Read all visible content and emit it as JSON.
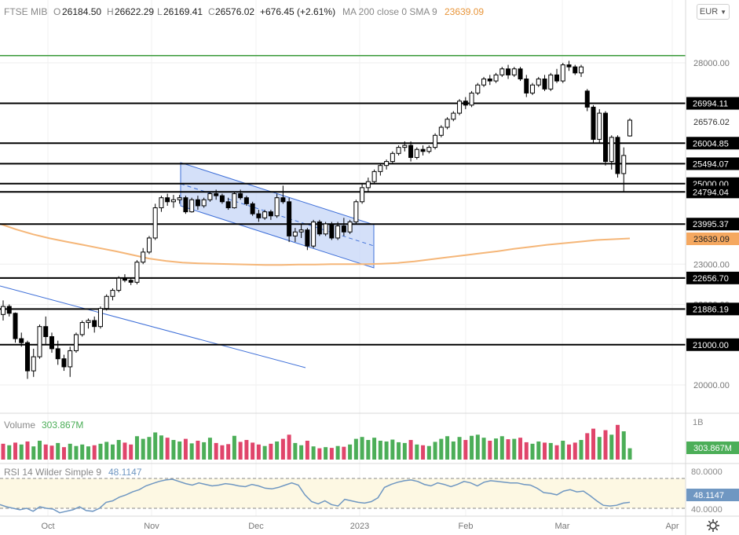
{
  "header": {
    "symbol": "FTSE MIB",
    "open_label": "O",
    "open_value": "26184.50",
    "high_label": "H",
    "high_value": "26622.29",
    "low_label": "L",
    "low_value": "26169.41",
    "close_label": "C",
    "close_value": "26576.02",
    "change": "+676.45 (+2.61%)",
    "ma_label": "MA 200 close 0 SMA 9",
    "ma_value": "23639.09"
  },
  "currency": {
    "label": "EUR",
    "icon": "chevron-down-icon"
  },
  "settings_icon": "gear-icon",
  "colors": {
    "up": "#000000",
    "down": "#000000",
    "ma": "#f5b678",
    "vol_up": "#4cae58",
    "vol_down": "#e0456b",
    "support_line": "#000000",
    "top_line": "#3a9a3a",
    "channel_fill": "#c9d8f7",
    "channel_stroke": "#3e6fd8",
    "rsi_line": "#6f97c2",
    "rsi_band": "#fdf8e3",
    "label_dark_bg": "#000000",
    "ma_label_bg": "#f5a860"
  },
  "chart_data": {
    "type": "candlestick",
    "title": "FTSE MIB",
    "price_axis_ticks": [
      20000,
      21000,
      22000,
      23000,
      24000,
      25000,
      26000,
      27000,
      28000
    ],
    "price_axis_tick_labels": [
      "20000.00",
      "21000.00",
      "22000.00",
      "23000.00",
      "24000.00",
      "25000.00",
      "26000.00",
      "27000.00",
      "28000.00"
    ],
    "ylim": [
      19450,
      28700
    ],
    "x_labels": [
      "Oct",
      "Nov",
      "Dec",
      "2023",
      "Feb",
      "Mar",
      "Apr"
    ],
    "horizontal_levels": [
      {
        "value": 26994.11,
        "label": "26994.11"
      },
      {
        "value": 26004.85,
        "label": "26004.85"
      },
      {
        "value": 25494.07,
        "label": "25494.07"
      },
      {
        "value": 25000.0,
        "label": "25000.00"
      },
      {
        "value": 24794.04,
        "label": "24794.04"
      },
      {
        "value": 23995.37,
        "label": "23995.37"
      },
      {
        "value": 22656.7,
        "label": "22656.70"
      },
      {
        "value": 21886.19,
        "label": "21886.19"
      },
      {
        "value": 21000.0,
        "label": "21000.00"
      }
    ],
    "top_level": {
      "value": 28180
    },
    "current_price_label": "26576.02",
    "ma_price_label": "23639.09",
    "ma200": [
      24000,
      23860,
      23740,
      23640,
      23560,
      23480,
      23400,
      23320,
      23230,
      23140,
      23080,
      23040,
      23020,
      23010,
      23000,
      22990,
      22980,
      22980,
      22990,
      22990,
      23000,
      23000,
      23000,
      23010,
      23030,
      23070,
      23120,
      23170,
      23220,
      23270,
      23320,
      23380,
      23430,
      23480,
      23520,
      23560,
      23600,
      23620,
      23639.09
    ],
    "volume_label": "Volume",
    "volume_value": "303.867M",
    "volume_axis_label": "1B",
    "rsi_label": "RSI 14 Wilder Simple 9",
    "rsi_value": "48.1147",
    "rsi_axis_labels": [
      "80.0000",
      "40.0000"
    ],
    "rsi": [
      45,
      42,
      40,
      38,
      40,
      36,
      42,
      40,
      39,
      34,
      36,
      38,
      42,
      37,
      36,
      40,
      48,
      50,
      55,
      58,
      62,
      65,
      70,
      73,
      76,
      78,
      79,
      76,
      73,
      71,
      74,
      72,
      70,
      71,
      73,
      72,
      70,
      69,
      72,
      70,
      67,
      66,
      68,
      71,
      74,
      71,
      58,
      49,
      46,
      50,
      45,
      43,
      52,
      50,
      48,
      47,
      49,
      54,
      68,
      72,
      75,
      77,
      78,
      76,
      72,
      70,
      74,
      72,
      69,
      72,
      76,
      74,
      70,
      75,
      77,
      76,
      75,
      74,
      74,
      72,
      71,
      67,
      61,
      60,
      58,
      63,
      65,
      62,
      63,
      57,
      50,
      44,
      43,
      44,
      47,
      48
    ],
    "candles": [
      {
        "o": 21750,
        "h": 22100,
        "l": 21600,
        "c": 21950
      },
      {
        "o": 21950,
        "h": 22000,
        "l": 21700,
        "c": 21780
      },
      {
        "o": 21780,
        "h": 21800,
        "l": 21050,
        "c": 21150
      },
      {
        "o": 21150,
        "h": 21300,
        "l": 20950,
        "c": 21050
      },
      {
        "o": 21050,
        "h": 21100,
        "l": 20150,
        "c": 20350
      },
      {
        "o": 20350,
        "h": 20900,
        "l": 20200,
        "c": 20700
      },
      {
        "o": 20700,
        "h": 21500,
        "l": 20650,
        "c": 21450
      },
      {
        "o": 21450,
        "h": 21700,
        "l": 21000,
        "c": 21200
      },
      {
        "o": 21200,
        "h": 21300,
        "l": 20800,
        "c": 20900
      },
      {
        "o": 20900,
        "h": 21100,
        "l": 20500,
        "c": 20650
      },
      {
        "o": 20650,
        "h": 20750,
        "l": 20350,
        "c": 20450
      },
      {
        "o": 20450,
        "h": 20950,
        "l": 20200,
        "c": 20850
      },
      {
        "o": 20850,
        "h": 21300,
        "l": 20800,
        "c": 21250
      },
      {
        "o": 21250,
        "h": 21600,
        "l": 21200,
        "c": 21550
      },
      {
        "o": 21550,
        "h": 21650,
        "l": 21400,
        "c": 21600
      },
      {
        "o": 21600,
        "h": 21700,
        "l": 21300,
        "c": 21450
      },
      {
        "o": 21450,
        "h": 21950,
        "l": 21400,
        "c": 21900
      },
      {
        "o": 21900,
        "h": 22250,
        "l": 21850,
        "c": 22200
      },
      {
        "o": 22200,
        "h": 22400,
        "l": 22100,
        "c": 22350
      },
      {
        "o": 22350,
        "h": 22700,
        "l": 22300,
        "c": 22650
      },
      {
        "o": 22650,
        "h": 22750,
        "l": 22550,
        "c": 22600
      },
      {
        "o": 22600,
        "h": 22650,
        "l": 22480,
        "c": 22550
      },
      {
        "o": 22550,
        "h": 23100,
        "l": 22500,
        "c": 23050
      },
      {
        "o": 23050,
        "h": 23400,
        "l": 23000,
        "c": 23300
      },
      {
        "o": 23300,
        "h": 23700,
        "l": 23250,
        "c": 23650
      },
      {
        "o": 23650,
        "h": 24500,
        "l": 23600,
        "c": 24400
      },
      {
        "o": 24400,
        "h": 24700,
        "l": 24300,
        "c": 24650
      },
      {
        "o": 24650,
        "h": 24750,
        "l": 24450,
        "c": 24550
      },
      {
        "o": 24550,
        "h": 24720,
        "l": 24400,
        "c": 24600
      },
      {
        "o": 24600,
        "h": 24720,
        "l": 24500,
        "c": 24650
      },
      {
        "o": 24650,
        "h": 24700,
        "l": 24250,
        "c": 24300
      },
      {
        "o": 24300,
        "h": 24650,
        "l": 24280,
        "c": 24600
      },
      {
        "o": 24600,
        "h": 24700,
        "l": 24350,
        "c": 24450
      },
      {
        "o": 24450,
        "h": 24650,
        "l": 24400,
        "c": 24600
      },
      {
        "o": 24600,
        "h": 24800,
        "l": 24550,
        "c": 24750
      },
      {
        "o": 24750,
        "h": 24850,
        "l": 24600,
        "c": 24700
      },
      {
        "o": 24700,
        "h": 24750,
        "l": 24500,
        "c": 24550
      },
      {
        "o": 24550,
        "h": 24650,
        "l": 24350,
        "c": 24400
      },
      {
        "o": 24400,
        "h": 24800,
        "l": 24380,
        "c": 24750
      },
      {
        "o": 24750,
        "h": 24850,
        "l": 24600,
        "c": 24650
      },
      {
        "o": 24650,
        "h": 24700,
        "l": 24450,
        "c": 24500
      },
      {
        "o": 24500,
        "h": 24550,
        "l": 24200,
        "c": 24250
      },
      {
        "o": 24250,
        "h": 24350,
        "l": 24050,
        "c": 24150
      },
      {
        "o": 24150,
        "h": 24350,
        "l": 24100,
        "c": 24300
      },
      {
        "o": 24300,
        "h": 24350,
        "l": 24100,
        "c": 24200
      },
      {
        "o": 24200,
        "h": 24750,
        "l": 24150,
        "c": 24650
      },
      {
        "o": 24650,
        "h": 24950,
        "l": 24500,
        "c": 24550
      },
      {
        "o": 24550,
        "h": 24650,
        "l": 23550,
        "c": 23700
      },
      {
        "o": 23700,
        "h": 23900,
        "l": 23550,
        "c": 23800
      },
      {
        "o": 23800,
        "h": 24000,
        "l": 23650,
        "c": 23850
      },
      {
        "o": 23850,
        "h": 23900,
        "l": 23350,
        "c": 23450
      },
      {
        "o": 23450,
        "h": 24100,
        "l": 23400,
        "c": 24050
      },
      {
        "o": 24050,
        "h": 24100,
        "l": 23700,
        "c": 23750
      },
      {
        "o": 23750,
        "h": 24050,
        "l": 23700,
        "c": 24000
      },
      {
        "o": 24000,
        "h": 24050,
        "l": 23600,
        "c": 23650
      },
      {
        "o": 23650,
        "h": 24050,
        "l": 23600,
        "c": 23950
      },
      {
        "o": 23950,
        "h": 24150,
        "l": 23700,
        "c": 23800
      },
      {
        "o": 23800,
        "h": 24100,
        "l": 23750,
        "c": 24050
      },
      {
        "o": 24050,
        "h": 24600,
        "l": 24000,
        "c": 24550
      },
      {
        "o": 24550,
        "h": 25000,
        "l": 24500,
        "c": 24900
      },
      {
        "o": 24900,
        "h": 25150,
        "l": 24800,
        "c": 25050
      },
      {
        "o": 25050,
        "h": 25350,
        "l": 25000,
        "c": 25300
      },
      {
        "o": 25300,
        "h": 25500,
        "l": 25200,
        "c": 25450
      },
      {
        "o": 25450,
        "h": 25600,
        "l": 25350,
        "c": 25550
      },
      {
        "o": 25550,
        "h": 25800,
        "l": 25500,
        "c": 25750
      },
      {
        "o": 25750,
        "h": 25950,
        "l": 25700,
        "c": 25900
      },
      {
        "o": 25900,
        "h": 26050,
        "l": 25800,
        "c": 25950
      },
      {
        "o": 25950,
        "h": 26050,
        "l": 25550,
        "c": 25650
      },
      {
        "o": 25650,
        "h": 25900,
        "l": 25600,
        "c": 25850
      },
      {
        "o": 25850,
        "h": 25950,
        "l": 25700,
        "c": 25800
      },
      {
        "o": 25800,
        "h": 25950,
        "l": 25750,
        "c": 25900
      },
      {
        "o": 25900,
        "h": 26250,
        "l": 25850,
        "c": 26200
      },
      {
        "o": 26200,
        "h": 26450,
        "l": 26150,
        "c": 26400
      },
      {
        "o": 26400,
        "h": 26650,
        "l": 26350,
        "c": 26600
      },
      {
        "o": 26600,
        "h": 26800,
        "l": 26550,
        "c": 26750
      },
      {
        "o": 26750,
        "h": 27100,
        "l": 26700,
        "c": 27050
      },
      {
        "o": 27050,
        "h": 27150,
        "l": 26850,
        "c": 26950
      },
      {
        "o": 26950,
        "h": 27300,
        "l": 26900,
        "c": 27250
      },
      {
        "o": 27250,
        "h": 27500,
        "l": 27200,
        "c": 27450
      },
      {
        "o": 27450,
        "h": 27650,
        "l": 27400,
        "c": 27600
      },
      {
        "o": 27600,
        "h": 27700,
        "l": 27450,
        "c": 27550
      },
      {
        "o": 27550,
        "h": 27750,
        "l": 27500,
        "c": 27700
      },
      {
        "o": 27700,
        "h": 27900,
        "l": 27650,
        "c": 27850
      },
      {
        "o": 27850,
        "h": 27950,
        "l": 27600,
        "c": 27700
      },
      {
        "o": 27700,
        "h": 27900,
        "l": 27650,
        "c": 27850
      },
      {
        "o": 27850,
        "h": 27900,
        "l": 27550,
        "c": 27600
      },
      {
        "o": 27600,
        "h": 27700,
        "l": 27150,
        "c": 27250
      },
      {
        "o": 27250,
        "h": 27500,
        "l": 27200,
        "c": 27450
      },
      {
        "o": 27450,
        "h": 27650,
        "l": 27400,
        "c": 27600
      },
      {
        "o": 27600,
        "h": 27700,
        "l": 27300,
        "c": 27350
      },
      {
        "o": 27350,
        "h": 27750,
        "l": 27300,
        "c": 27700
      },
      {
        "o": 27700,
        "h": 27850,
        "l": 27500,
        "c": 27550
      },
      {
        "o": 27550,
        "h": 28000,
        "l": 27500,
        "c": 27950
      },
      {
        "o": 27950,
        "h": 28050,
        "l": 27800,
        "c": 27900
      },
      {
        "o": 27900,
        "h": 27950,
        "l": 27700,
        "c": 27750
      },
      {
        "o": 27750,
        "h": 27950,
        "l": 27650,
        "c": 27900
      },
      {
        "o": 27300,
        "h": 27350,
        "l": 26800,
        "c": 26900
      },
      {
        "o": 26900,
        "h": 26950,
        "l": 26000,
        "c": 26100
      },
      {
        "o": 26100,
        "h": 26850,
        "l": 26000,
        "c": 26750
      },
      {
        "o": 26750,
        "h": 26800,
        "l": 25450,
        "c": 25550
      },
      {
        "o": 25550,
        "h": 26200,
        "l": 25350,
        "c": 26150
      },
      {
        "o": 26150,
        "h": 26200,
        "l": 25150,
        "c": 25250
      },
      {
        "o": 25250,
        "h": 25900,
        "l": 24800,
        "c": 25700
      },
      {
        "o": 26184.5,
        "h": 26622.29,
        "l": 26169.41,
        "c": 26576.02
      }
    ],
    "volume_scale_max": 1,
    "volume": [
      {
        "v": 0.42,
        "up": false
      },
      {
        "v": 0.38,
        "up": true
      },
      {
        "v": 0.45,
        "up": false
      },
      {
        "v": 0.4,
        "up": true
      },
      {
        "v": 0.48,
        "up": false
      },
      {
        "v": 0.35,
        "up": true
      },
      {
        "v": 0.5,
        "up": true
      },
      {
        "v": 0.4,
        "up": false
      },
      {
        "v": 0.37,
        "up": false
      },
      {
        "v": 0.44,
        "up": true
      },
      {
        "v": 0.33,
        "up": false
      },
      {
        "v": 0.42,
        "up": true
      },
      {
        "v": 0.36,
        "up": true
      },
      {
        "v": 0.4,
        "up": true
      },
      {
        "v": 0.35,
        "up": true
      },
      {
        "v": 0.38,
        "up": false
      },
      {
        "v": 0.42,
        "up": true
      },
      {
        "v": 0.47,
        "up": true
      },
      {
        "v": 0.4,
        "up": true
      },
      {
        "v": 0.52,
        "up": true
      },
      {
        "v": 0.45,
        "up": false
      },
      {
        "v": 0.4,
        "up": false
      },
      {
        "v": 0.62,
        "up": true
      },
      {
        "v": 0.55,
        "up": true
      },
      {
        "v": 0.6,
        "up": true
      },
      {
        "v": 0.72,
        "up": true
      },
      {
        "v": 0.64,
        "up": true
      },
      {
        "v": 0.58,
        "up": false
      },
      {
        "v": 0.52,
        "up": true
      },
      {
        "v": 0.48,
        "up": true
      },
      {
        "v": 0.55,
        "up": false
      },
      {
        "v": 0.43,
        "up": true
      },
      {
        "v": 0.5,
        "up": false
      },
      {
        "v": 0.46,
        "up": true
      },
      {
        "v": 0.58,
        "up": true
      },
      {
        "v": 0.44,
        "up": false
      },
      {
        "v": 0.38,
        "up": false
      },
      {
        "v": 0.41,
        "up": false
      },
      {
        "v": 0.63,
        "up": true
      },
      {
        "v": 0.47,
        "up": false
      },
      {
        "v": 0.52,
        "up": false
      },
      {
        "v": 0.45,
        "up": false
      },
      {
        "v": 0.4,
        "up": false
      },
      {
        "v": 0.36,
        "up": true
      },
      {
        "v": 0.42,
        "up": false
      },
      {
        "v": 0.48,
        "up": true
      },
      {
        "v": 0.55,
        "up": false
      },
      {
        "v": 0.66,
        "up": false
      },
      {
        "v": 0.44,
        "up": true
      },
      {
        "v": 0.38,
        "up": true
      },
      {
        "v": 0.5,
        "up": false
      },
      {
        "v": 0.35,
        "up": true
      },
      {
        "v": 0.3,
        "up": false
      },
      {
        "v": 0.33,
        "up": true
      },
      {
        "v": 0.31,
        "up": false
      },
      {
        "v": 0.36,
        "up": true
      },
      {
        "v": 0.34,
        "up": false
      },
      {
        "v": 0.4,
        "up": true
      },
      {
        "v": 0.55,
        "up": true
      },
      {
        "v": 0.6,
        "up": true
      },
      {
        "v": 0.52,
        "up": true
      },
      {
        "v": 0.58,
        "up": true
      },
      {
        "v": 0.5,
        "up": true
      },
      {
        "v": 0.48,
        "up": true
      },
      {
        "v": 0.53,
        "up": true
      },
      {
        "v": 0.46,
        "up": true
      },
      {
        "v": 0.44,
        "up": true
      },
      {
        "v": 0.52,
        "up": false
      },
      {
        "v": 0.4,
        "up": true
      },
      {
        "v": 0.38,
        "up": false
      },
      {
        "v": 0.36,
        "up": true
      },
      {
        "v": 0.47,
        "up": true
      },
      {
        "v": 0.55,
        "up": true
      },
      {
        "v": 0.62,
        "up": true
      },
      {
        "v": 0.48,
        "up": true
      },
      {
        "v": 0.6,
        "up": true
      },
      {
        "v": 0.52,
        "up": false
      },
      {
        "v": 0.63,
        "up": true
      },
      {
        "v": 0.66,
        "up": true
      },
      {
        "v": 0.58,
        "up": true
      },
      {
        "v": 0.5,
        "up": false
      },
      {
        "v": 0.56,
        "up": true
      },
      {
        "v": 0.62,
        "up": true
      },
      {
        "v": 0.54,
        "up": false
      },
      {
        "v": 0.55,
        "up": true
      },
      {
        "v": 0.58,
        "up": false
      },
      {
        "v": 0.46,
        "up": false
      },
      {
        "v": 0.42,
        "up": true
      },
      {
        "v": 0.48,
        "up": true
      },
      {
        "v": 0.45,
        "up": false
      },
      {
        "v": 0.44,
        "up": true
      },
      {
        "v": 0.38,
        "up": false
      },
      {
        "v": 0.5,
        "up": true
      },
      {
        "v": 0.4,
        "up": false
      },
      {
        "v": 0.45,
        "up": false
      },
      {
        "v": 0.52,
        "up": true
      },
      {
        "v": 0.7,
        "up": false
      },
      {
        "v": 0.82,
        "up": false
      },
      {
        "v": 0.6,
        "up": true
      },
      {
        "v": 0.78,
        "up": false
      },
      {
        "v": 0.66,
        "up": true
      },
      {
        "v": 0.92,
        "up": false
      },
      {
        "v": 0.75,
        "up": true
      },
      {
        "v": 0.3,
        "up": true
      }
    ]
  }
}
